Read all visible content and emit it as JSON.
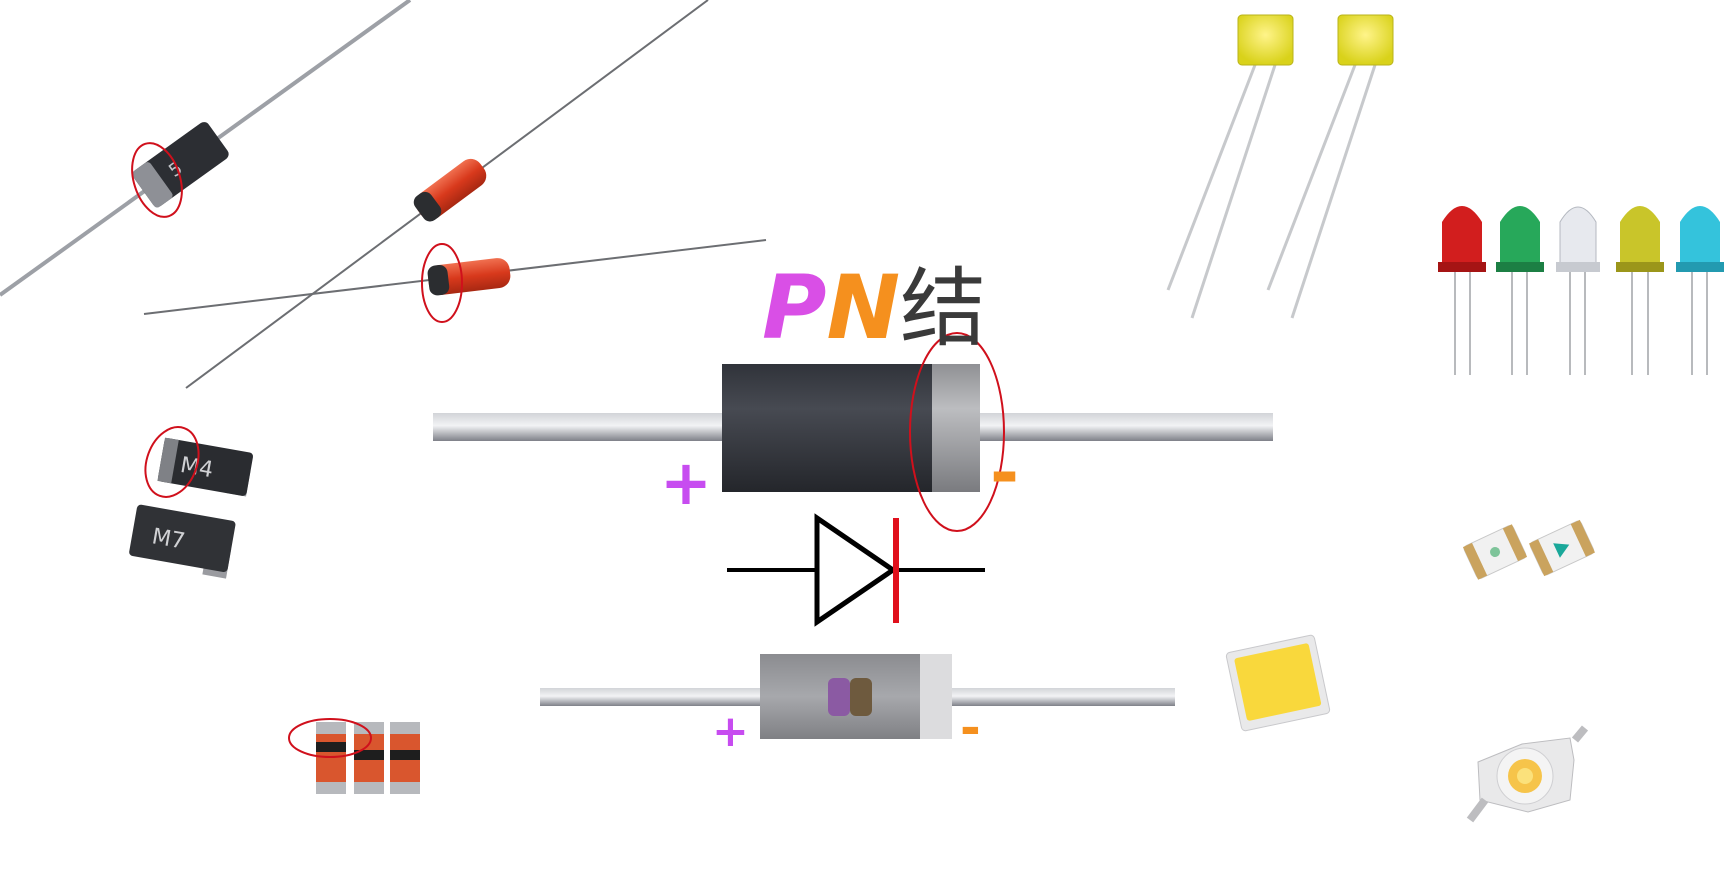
{
  "title": {
    "p": "P",
    "n": "N",
    "jie": "结"
  },
  "signs": {
    "plus_large": "+",
    "minus_large": "-",
    "plus_small": "+",
    "minus_small": "-"
  },
  "smd_diodes": {
    "top_marking": "M4",
    "bottom_marking": "M7"
  },
  "colors": {
    "p_color": "#d94fe6",
    "n_color": "#f5901e",
    "annotation_red": "#d0101c",
    "cathode_bar_red": "#e0101c",
    "diode_body": "#393c44",
    "lead_gray": "#9a9ca2"
  }
}
